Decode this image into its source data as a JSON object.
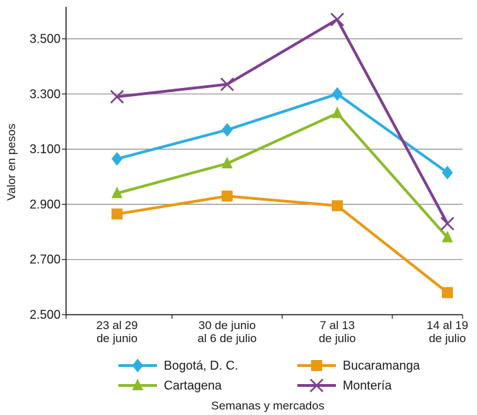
{
  "chart_data": {
    "type": "line",
    "title": "",
    "xlabel": "Semanas y mercados",
    "ylabel": "Valor en pesos",
    "categories": [
      [
        "23 al 29",
        "de junio"
      ],
      [
        "30 de junio",
        "al 6 de julio"
      ],
      [
        "7 al 13",
        "de julio"
      ],
      [
        "14 al 19",
        "de julio"
      ]
    ],
    "yticks": [
      "2.500",
      "2.700",
      "2.900",
      "3.100",
      "3.300",
      "3.500"
    ],
    "ytick_values": [
      2500,
      2700,
      2900,
      3100,
      3300,
      3500
    ],
    "ylim": [
      2500,
      3600
    ],
    "grid": true,
    "legend_position": "bottom",
    "series": [
      {
        "name": "Bogotá, D. C.",
        "color": "#2eaee0",
        "marker": "diamond",
        "values": [
          3065,
          3170,
          3300,
          3015
        ]
      },
      {
        "name": "Bucaramanga",
        "color": "#e99a12",
        "marker": "square",
        "values": [
          2865,
          2930,
          2895,
          2580
        ]
      },
      {
        "name": "Cartagena",
        "color": "#8cbb2a",
        "marker": "triangle",
        "values": [
          2940,
          3048,
          3230,
          2780
        ]
      },
      {
        "name": "Montería",
        "color": "#7e3f8e",
        "marker": "x",
        "values": [
          3290,
          3335,
          3570,
          2830
        ]
      }
    ]
  }
}
